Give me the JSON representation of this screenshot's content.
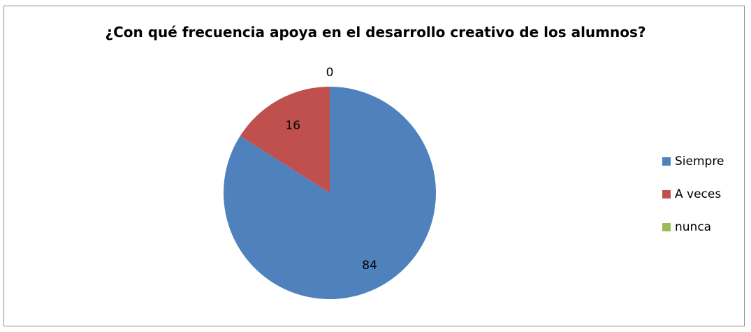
{
  "chart_data": {
    "type": "pie",
    "title": "¿Con qué frecuencia apoya en el desarrollo creativo de los alumnos?",
    "categories": [
      "Siempre",
      "A veces",
      "nunca"
    ],
    "values": [
      84,
      16,
      0
    ],
    "colors": [
      "#4f81bd",
      "#c0504d",
      "#9bbb59"
    ],
    "legend_position": "right"
  }
}
